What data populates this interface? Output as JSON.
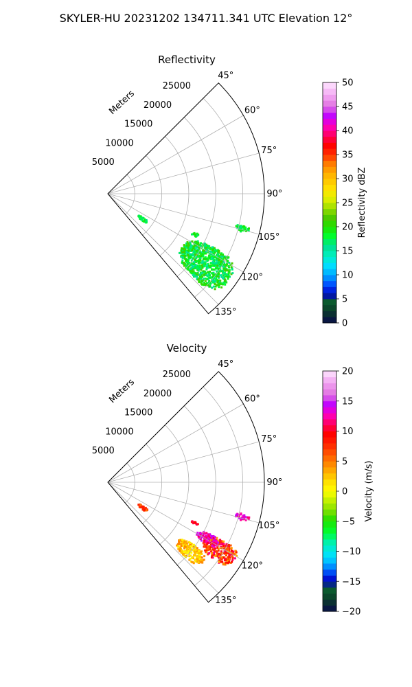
{
  "figure": {
    "suptitle": "SKYLER-HU  20231202  134711.341 UTC Elevation 12°"
  },
  "chart_data": [
    {
      "type": "polar-sector-heatmap",
      "title": "Reflectivity",
      "radial_axis_label": "Meters",
      "theta_range_deg": [
        45,
        140
      ],
      "r_range_m": [
        0,
        29000
      ],
      "radial_ticks": [
        5000,
        10000,
        15000,
        20000,
        25000
      ],
      "radial_tick_labels": [
        "5000",
        "10000",
        "15000",
        "20000",
        "25000"
      ],
      "theta_ticks": [
        45,
        60,
        75,
        90,
        105,
        120,
        135
      ],
      "theta_tick_labels": [
        "45°",
        "60°",
        "75°",
        "90°",
        "105°",
        "120°",
        "135°"
      ],
      "grid": true,
      "colorbar": {
        "label": "Reflectivity dBZ",
        "vmin": 0,
        "vmax": 50,
        "ticks": [
          0,
          5,
          10,
          15,
          20,
          25,
          30,
          35,
          40,
          45,
          50
        ],
        "tick_labels": [
          "0",
          "5",
          "10",
          "15",
          "20",
          "25",
          "30",
          "35",
          "40",
          "45",
          "50"
        ]
      },
      "echo_regions": [
        {
          "theta_deg": [
            117,
            134
          ],
          "r_m": [
            17000,
            27500
          ],
          "value_range": [
            15,
            22
          ],
          "dominant": 18
        },
        {
          "theta_deg": [
            103,
            106
          ],
          "r_m": [
            24500,
            27000
          ],
          "value_range": [
            16,
            20
          ],
          "dominant": 18
        },
        {
          "theta_deg": [
            114,
            116
          ],
          "r_m": [
            17000,
            18500
          ],
          "value_range": [
            16,
            20
          ],
          "dominant": 18
        },
        {
          "theta_deg": [
            124,
            128
          ],
          "r_m": [
            7000,
            9000
          ],
          "value_range": [
            16,
            20
          ],
          "dominant": 18
        }
      ]
    },
    {
      "type": "polar-sector-heatmap",
      "title": "Velocity",
      "radial_axis_label": "Meters",
      "theta_range_deg": [
        45,
        140
      ],
      "r_range_m": [
        0,
        29000
      ],
      "radial_ticks": [
        5000,
        10000,
        15000,
        20000,
        25000
      ],
      "radial_tick_labels": [
        "5000",
        "10000",
        "15000",
        "20000",
        "25000"
      ],
      "theta_ticks": [
        45,
        60,
        75,
        90,
        105,
        120,
        135
      ],
      "theta_tick_labels": [
        "45°",
        "60°",
        "75°",
        "90°",
        "105°",
        "120°",
        "135°"
      ],
      "grid": true,
      "colorbar": {
        "label": "Velocity (m/s)",
        "vmin": -20,
        "vmax": 20,
        "ticks": [
          -20,
          -15,
          -10,
          -5,
          0,
          5,
          10,
          15,
          20
        ],
        "tick_labels": [
          "−20",
          "−15",
          "−10",
          "−5",
          "0",
          "5",
          "10",
          "15",
          "20"
        ]
      },
      "echo_regions": [
        {
          "theta_deg": [
            117,
            126
          ],
          "r_m": [
            21000,
            27500
          ],
          "value_range": [
            3,
            12
          ],
          "dominant": 8
        },
        {
          "theta_deg": [
            117,
            122
          ],
          "r_m": [
            19000,
            23500
          ],
          "value_range": [
            10,
            15
          ],
          "dominant": 13
        },
        {
          "theta_deg": [
            126,
            134
          ],
          "r_m": [
            17000,
            23000
          ],
          "value_range": [
            0,
            5
          ],
          "dominant": 2
        },
        {
          "theta_deg": [
            103,
            106
          ],
          "r_m": [
            24500,
            27000
          ],
          "value_range": [
            11,
            15
          ],
          "dominant": 13
        },
        {
          "theta_deg": [
            114,
            116
          ],
          "r_m": [
            17000,
            18500
          ],
          "value_range": [
            8,
            11
          ],
          "dominant": 9
        },
        {
          "theta_deg": [
            124,
            128
          ],
          "r_m": [
            7000,
            9000
          ],
          "value_range": [
            5,
            9
          ],
          "dominant": 7
        }
      ]
    }
  ]
}
